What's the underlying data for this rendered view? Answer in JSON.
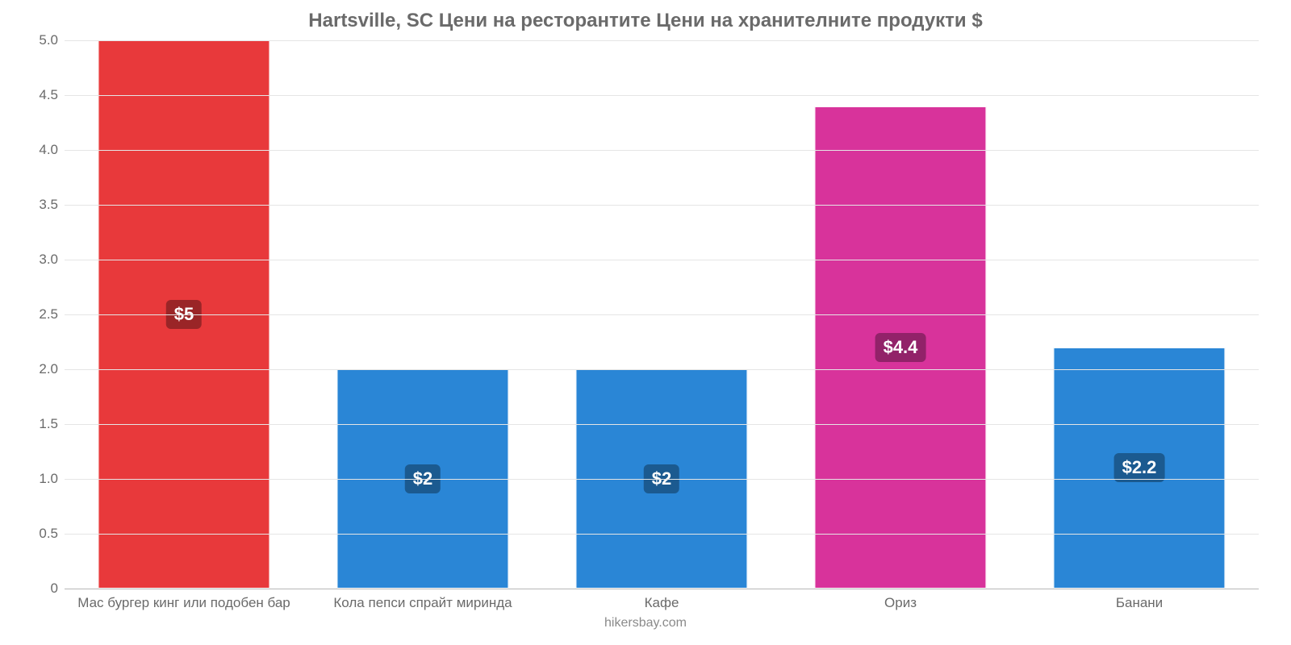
{
  "chart": {
    "type": "bar",
    "title": "Hartsville, SC Цени на ресторантите Цени на хранителните продукти $",
    "title_fontsize": 24,
    "title_color": "#6a6a6a",
    "attribution": "hikersbay.com",
    "background_color": "#ffffff",
    "grid_color": "#e5e5e5",
    "axis_color": "#b7b7b7",
    "label_color": "#6a6a6a",
    "ylim": [
      0,
      5.0
    ],
    "yticks": [
      0,
      0.5,
      1.0,
      1.5,
      2.0,
      2.5,
      3.0,
      3.5,
      4.0,
      4.5,
      5.0
    ],
    "ytick_labels": [
      "0",
      "0.5",
      "1.0",
      "1.5",
      "2.0",
      "2.5",
      "3.0",
      "3.5",
      "4.0",
      "4.5",
      "5.0"
    ],
    "axis_fontsize": 17,
    "bar_width_pct": 72,
    "categories": [
      "Мас бургер кинг или подобен бар",
      "Кола пепси спрайт миринда",
      "Кафе",
      "Ориз",
      "Банани"
    ],
    "values": [
      5.0,
      2.0,
      2.0,
      4.4,
      2.2
    ],
    "value_labels": [
      "$5",
      "$2",
      "$2",
      "$4.4",
      "$2.2"
    ],
    "bar_colors": [
      "#e8393b",
      "#2a86d6",
      "#2a86d6",
      "#d8339b",
      "#2a86d6"
    ],
    "badge_colors": [
      "#9a2527",
      "#1b5a90",
      "#1b5a90",
      "#922269",
      "#1b5a90"
    ],
    "value_label_fontsize": 22,
    "value_label_text_color": "#ffffff"
  }
}
